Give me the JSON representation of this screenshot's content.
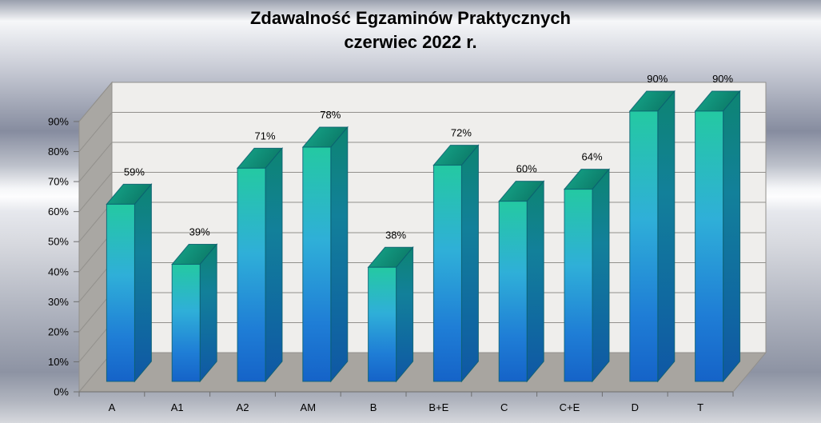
{
  "chart_data": {
    "type": "bar",
    "projection": "3d",
    "title_line1": "Zdawalność Egzaminów Praktycznych",
    "title_line2": "czerwiec 2022 r.",
    "categories": [
      "A",
      "A1",
      "A2",
      "AM",
      "B",
      "B+E",
      "C",
      "C+E",
      "D",
      "T"
    ],
    "values": [
      59,
      39,
      71,
      78,
      38,
      72,
      60,
      64,
      90,
      90
    ],
    "data_labels": [
      "59%",
      "39%",
      "71%",
      "78%",
      "38%",
      "72%",
      "60%",
      "64%",
      "90%",
      "90%"
    ],
    "xlabel": "",
    "ylabel": "",
    "y_axis": {
      "min": 0,
      "max": 90,
      "step": 10,
      "ticks": [
        "0%",
        "10%",
        "20%",
        "30%",
        "40%",
        "50%",
        "60%",
        "70%",
        "80%",
        "90%"
      ]
    },
    "grid": true,
    "legend": null,
    "colors": {
      "bar_front_top": "#24c9a2",
      "bar_front_mid": "#2fafd8",
      "bar_front_low": "#1f7ed6",
      "bar_front_bottom": "#1563c8",
      "bar_side_top": "#0d8472",
      "bar_side_mid": "#12809a",
      "bar_side_bottom": "#0f57a5",
      "bar_top_left": "#16a88b",
      "bar_top_right": "#0c7a68",
      "bar_outline": "#0b5f70",
      "back_wall": "#efeeec",
      "side_wall": "#a9a7a3",
      "floor": "#a8a5a0",
      "gridline": "#92908c",
      "axis": "#6e6e6e",
      "text": "#000000"
    }
  }
}
